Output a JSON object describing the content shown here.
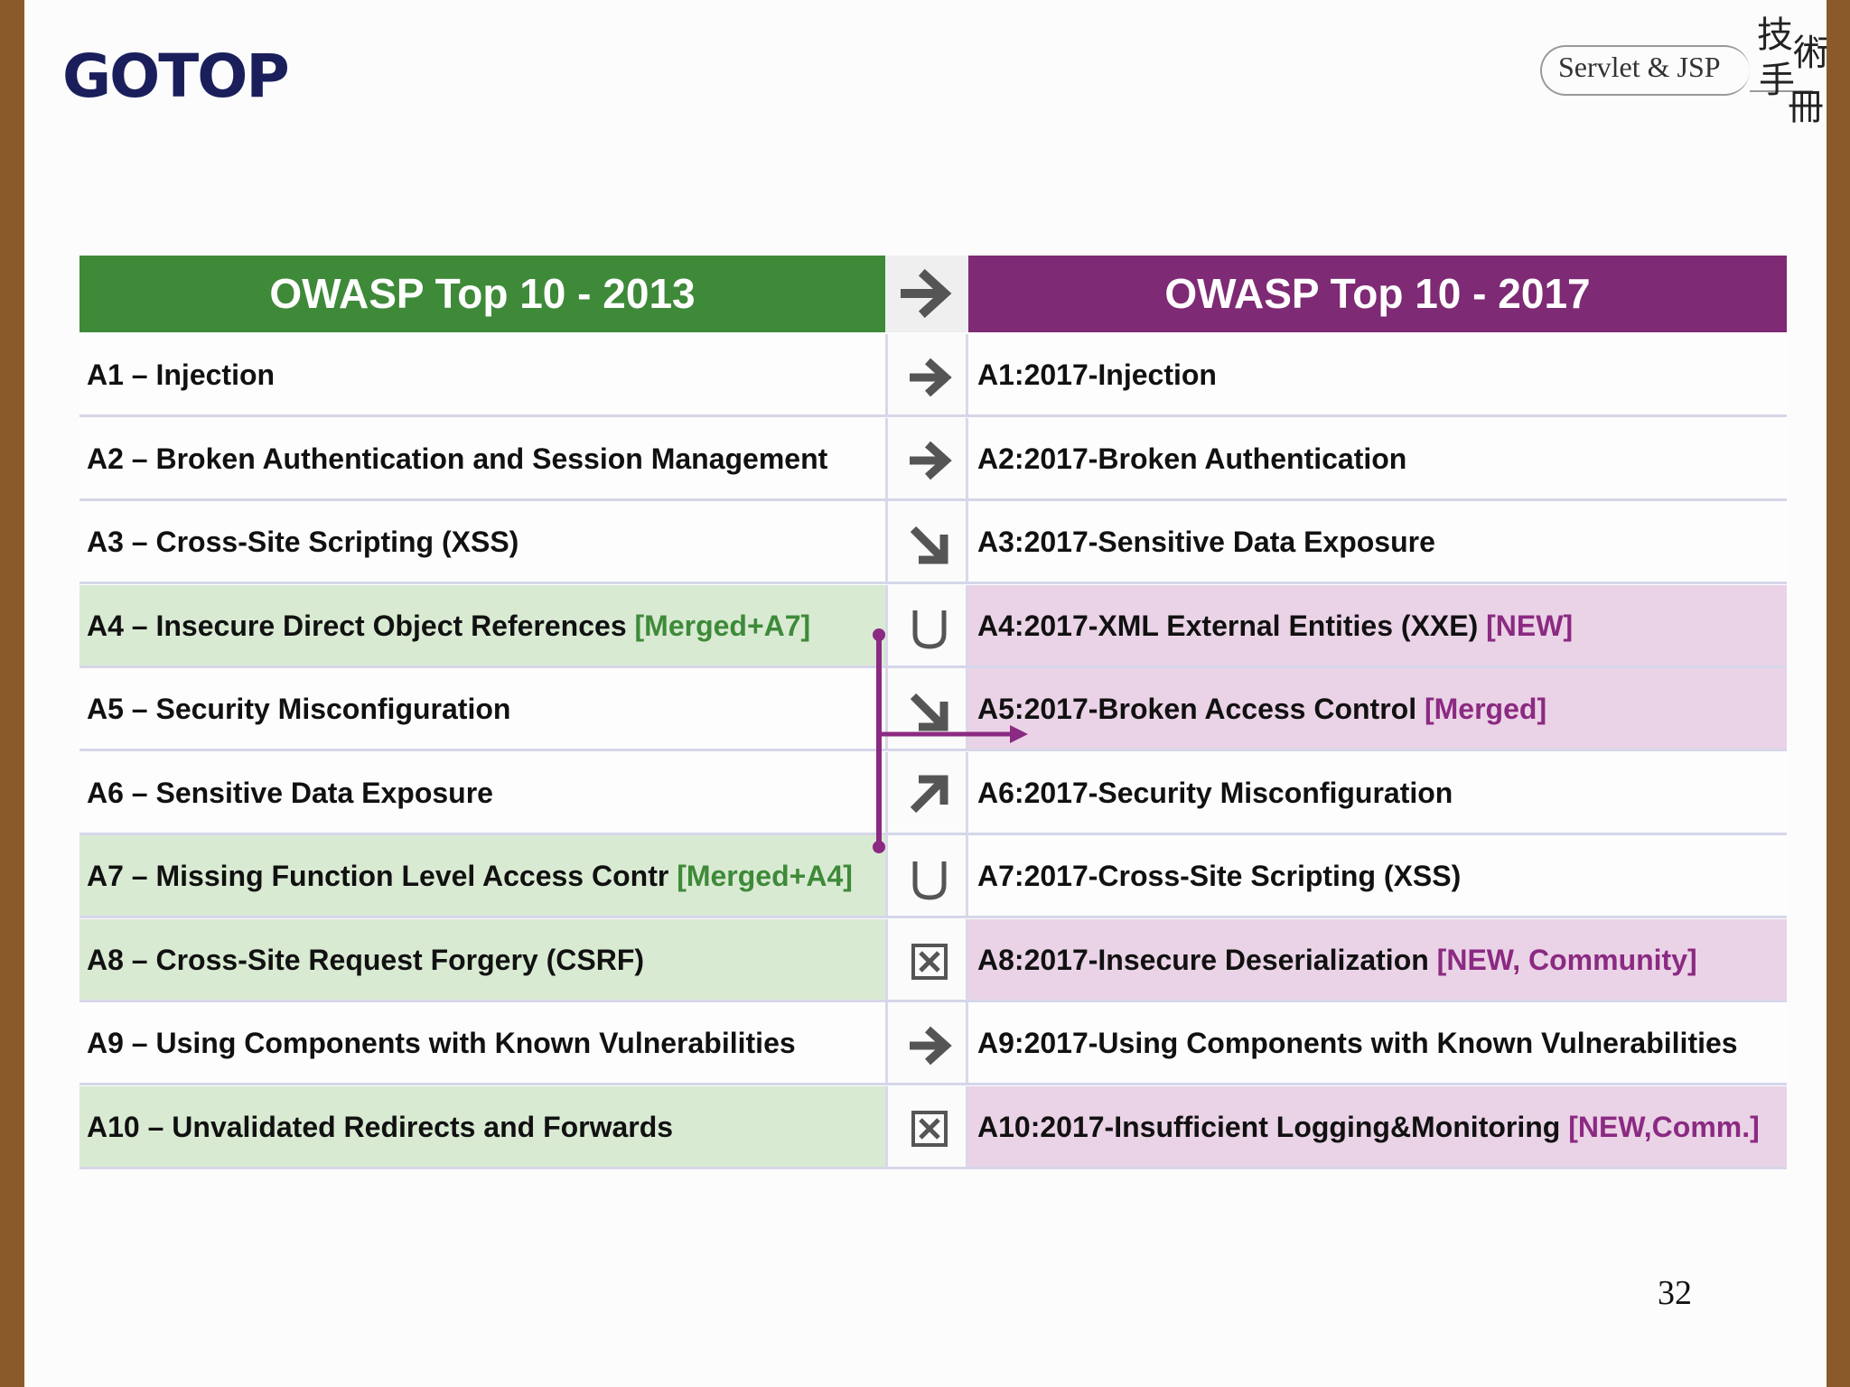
{
  "header": {
    "logo": "GOTOP",
    "brand_text": "Servlet & JSP",
    "brand_hanzi": [
      "技",
      "術",
      "手",
      "冊"
    ]
  },
  "table": {
    "left_title": "OWASP Top 10 - 2013",
    "right_title": "OWASP Top 10 - 2017",
    "header_arrow_icon": "arrow-right-icon",
    "colors": {
      "left_header": "#3e8a39",
      "right_header": "#7e2a74",
      "left_highlight": "#d9ead3",
      "right_highlight": "#ead3e6",
      "connector": "#8b2a82"
    },
    "rows": [
      {
        "left": "A1 – Injection",
        "left_tag": "",
        "mid_icon": "arrow-right-icon",
        "right": "A1:2017-Injection",
        "right_tag": "",
        "left_hl": false,
        "right_hl": false
      },
      {
        "left": "A2 – Broken Authentication and Session Management",
        "left_tag": "",
        "mid_icon": "arrow-right-icon",
        "right": "A2:2017-Broken Authentication",
        "right_tag": "",
        "left_hl": false,
        "right_hl": false
      },
      {
        "left": "A3 – Cross-Site Scripting (XSS)",
        "left_tag": "",
        "mid_icon": "arrow-down-right-icon",
        "right": "A3:2017-Sensitive Data Exposure",
        "right_tag": "",
        "left_hl": false,
        "right_hl": false
      },
      {
        "left": "A4 – Insecure Direct Object References",
        "left_tag": "[Merged+A7]",
        "mid_icon": "union-icon",
        "right": "A4:2017-XML External Entities (XXE)",
        "right_tag": "[NEW]",
        "left_hl": true,
        "right_hl": true
      },
      {
        "left": "A5 – Security Misconfiguration",
        "left_tag": "",
        "mid_icon": "arrow-down-right-icon",
        "right": "A5:2017-Broken Access Control",
        "right_tag": "[Merged]",
        "left_hl": false,
        "right_hl": true
      },
      {
        "left": "A6 – Sensitive Data Exposure",
        "left_tag": "",
        "mid_icon": "arrow-up-right-icon",
        "right": "A6:2017-Security Misconfiguration",
        "right_tag": "",
        "left_hl": false,
        "right_hl": false
      },
      {
        "left": "A7 – Missing Function Level Access Contr",
        "left_tag": "[Merged+A4]",
        "mid_icon": "union-icon",
        "right": "A7:2017-Cross-Site Scripting (XSS)",
        "right_tag": "",
        "left_hl": true,
        "right_hl": false
      },
      {
        "left": "A8 – Cross-Site Request Forgery (CSRF)",
        "left_tag": "",
        "mid_icon": "x-box-icon",
        "right": "A8:2017-Insecure Deserialization",
        "right_tag": "[NEW, Community]",
        "left_hl": true,
        "right_hl": true
      },
      {
        "left": "A9 – Using Components with Known Vulnerabilities",
        "left_tag": "",
        "mid_icon": "arrow-right-icon",
        "right": "A9:2017-Using Components with Known Vulnerabilities",
        "right_tag": "",
        "left_hl": false,
        "right_hl": false
      },
      {
        "left": "A10 – Unvalidated Redirects and Forwards",
        "left_tag": "",
        "mid_icon": "x-box-icon",
        "right": "A10:2017-Insufficient Logging&Monitoring",
        "right_tag": "[NEW,Comm.]",
        "left_hl": true,
        "right_hl": true
      }
    ]
  },
  "page_number": "32"
}
